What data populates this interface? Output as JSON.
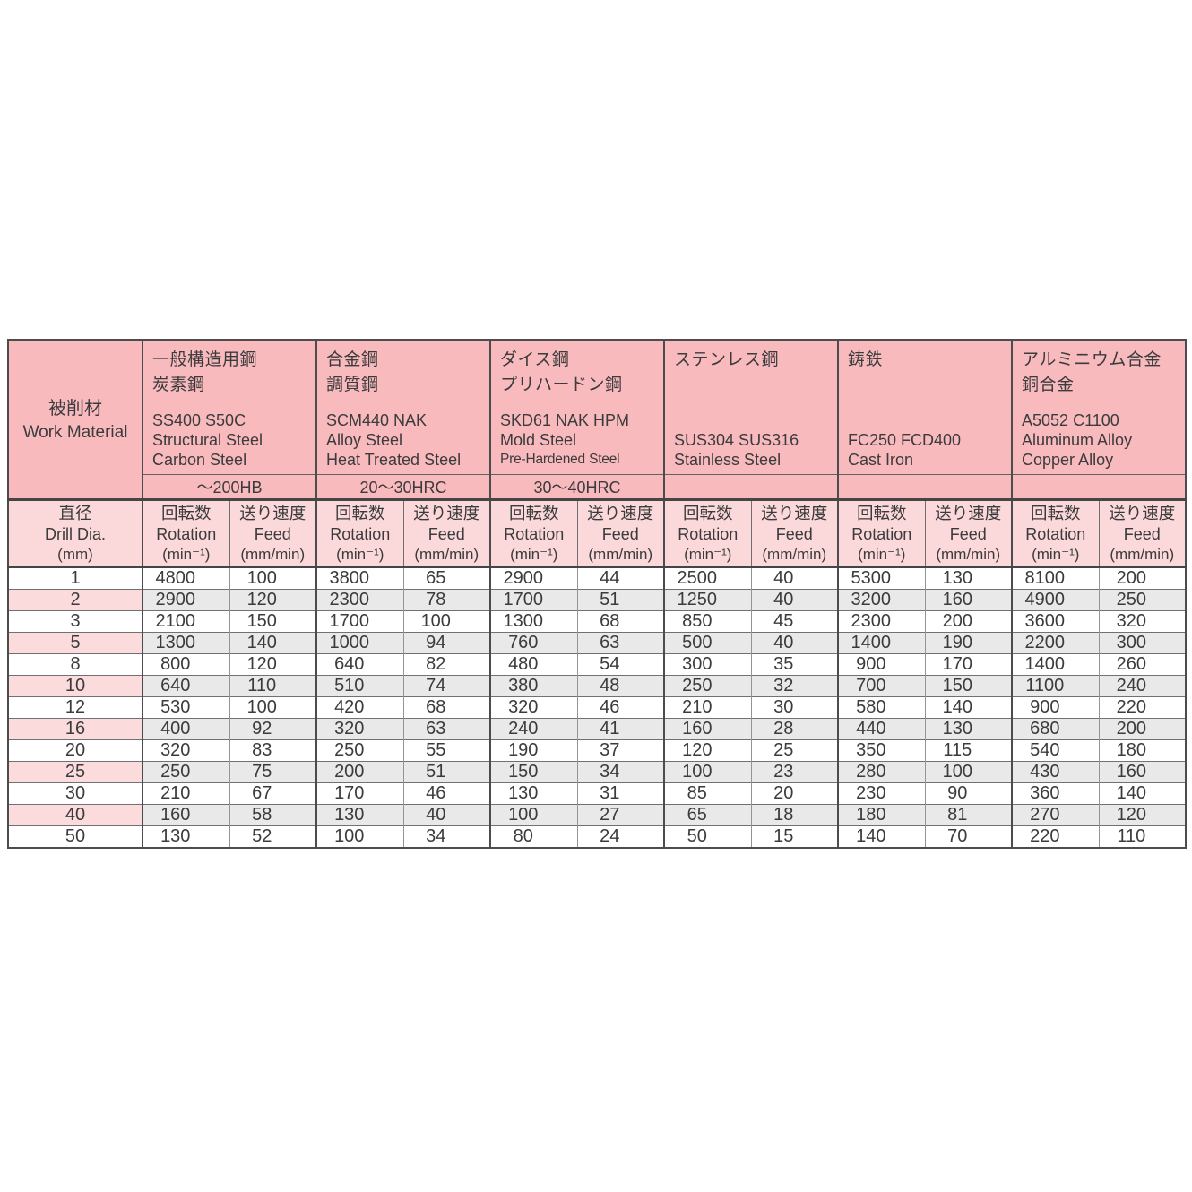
{
  "header": {
    "work_material": {
      "ja": "被削材",
      "en": "Work Material"
    },
    "groups": [
      {
        "ja1": "一般構造用鋼",
        "ja2": "炭素鋼",
        "codes": "SS400 S50C",
        "en1": "Structural Steel",
        "en2": "Carbon Steel",
        "hardness": "～200HB"
      },
      {
        "ja1": "合金鋼",
        "ja2": "調質鋼",
        "codes": "SCM440 NAK",
        "en1": "Alloy Steel",
        "en2": "Heat Treated Steel",
        "hardness": "20～30HRC"
      },
      {
        "ja1": "ダイス鋼",
        "ja2": "プリハードン鋼",
        "codes": "SKD61 NAK HPM",
        "en1": "Mold Steel",
        "en2": "Pre-Hardened Steel",
        "hardness": "30～40HRC"
      },
      {
        "ja1": "ステンレス鋼",
        "ja2": "",
        "codes": "SUS304 SUS316",
        "en1": "Stainless Steel",
        "en2": "",
        "hardness": ""
      },
      {
        "ja1": "鋳鉄",
        "ja2": "",
        "codes": "FC250  FCD400",
        "en1": "Cast Iron",
        "en2": "",
        "hardness": ""
      },
      {
        "ja1": "アルミニウム合金",
        "ja2": "銅合金",
        "codes": "A5052 C1100",
        "en1": "Aluminum Alloy",
        "en2": "Copper Alloy",
        "hardness": ""
      }
    ],
    "dia": {
      "ja": "直径",
      "en": "Drill Dia.",
      "unit": "(mm)"
    },
    "rotation": {
      "ja": "回転数",
      "en": "Rotation",
      "unit": "(min⁻¹)"
    },
    "feed": {
      "ja": "送り速度",
      "en": "Feed",
      "unit": "(mm/min)"
    }
  },
  "table": {
    "rows": [
      {
        "dia": "1",
        "values": [
          4800,
          100,
          3800,
          65,
          2900,
          44,
          2500,
          40,
          5300,
          130,
          8100,
          200
        ]
      },
      {
        "dia": "2",
        "values": [
          2900,
          120,
          2300,
          78,
          1700,
          51,
          1250,
          40,
          3200,
          160,
          4900,
          250
        ]
      },
      {
        "dia": "3",
        "values": [
          2100,
          150,
          1700,
          100,
          1300,
          68,
          850,
          45,
          2300,
          200,
          3600,
          320
        ]
      },
      {
        "dia": "5",
        "values": [
          1300,
          140,
          1000,
          94,
          760,
          63,
          500,
          40,
          1400,
          190,
          2200,
          300
        ]
      },
      {
        "dia": "8",
        "values": [
          800,
          120,
          640,
          82,
          480,
          54,
          300,
          35,
          900,
          170,
          1400,
          260
        ]
      },
      {
        "dia": "10",
        "values": [
          640,
          110,
          510,
          74,
          380,
          48,
          250,
          32,
          700,
          150,
          1100,
          240
        ]
      },
      {
        "dia": "12",
        "values": [
          530,
          100,
          420,
          68,
          320,
          46,
          210,
          30,
          580,
          140,
          900,
          220
        ]
      },
      {
        "dia": "16",
        "values": [
          400,
          92,
          320,
          63,
          240,
          41,
          160,
          28,
          440,
          130,
          680,
          200
        ]
      },
      {
        "dia": "20",
        "values": [
          320,
          83,
          250,
          55,
          190,
          37,
          120,
          25,
          350,
          115,
          540,
          180
        ]
      },
      {
        "dia": "25",
        "values": [
          250,
          75,
          200,
          51,
          150,
          34,
          100,
          23,
          280,
          100,
          430,
          160
        ]
      },
      {
        "dia": "30",
        "values": [
          210,
          67,
          170,
          46,
          130,
          31,
          85,
          20,
          230,
          90,
          360,
          140
        ]
      },
      {
        "dia": "40",
        "values": [
          160,
          58,
          130,
          40,
          100,
          27,
          65,
          18,
          180,
          81,
          270,
          120
        ]
      },
      {
        "dia": "50",
        "values": [
          130,
          52,
          100,
          34,
          80,
          24,
          50,
          15,
          140,
          70,
          220,
          110
        ]
      }
    ]
  },
  "colors": {
    "group_header_bg": "#f8babd",
    "sub_header_bg": "#fbd8d9",
    "shaded_row_gray": "#e9e9ea",
    "shaded_row_pink": "#fcdbdd",
    "border_dark": "#4c4c4e",
    "text": "#3b3b3d"
  }
}
